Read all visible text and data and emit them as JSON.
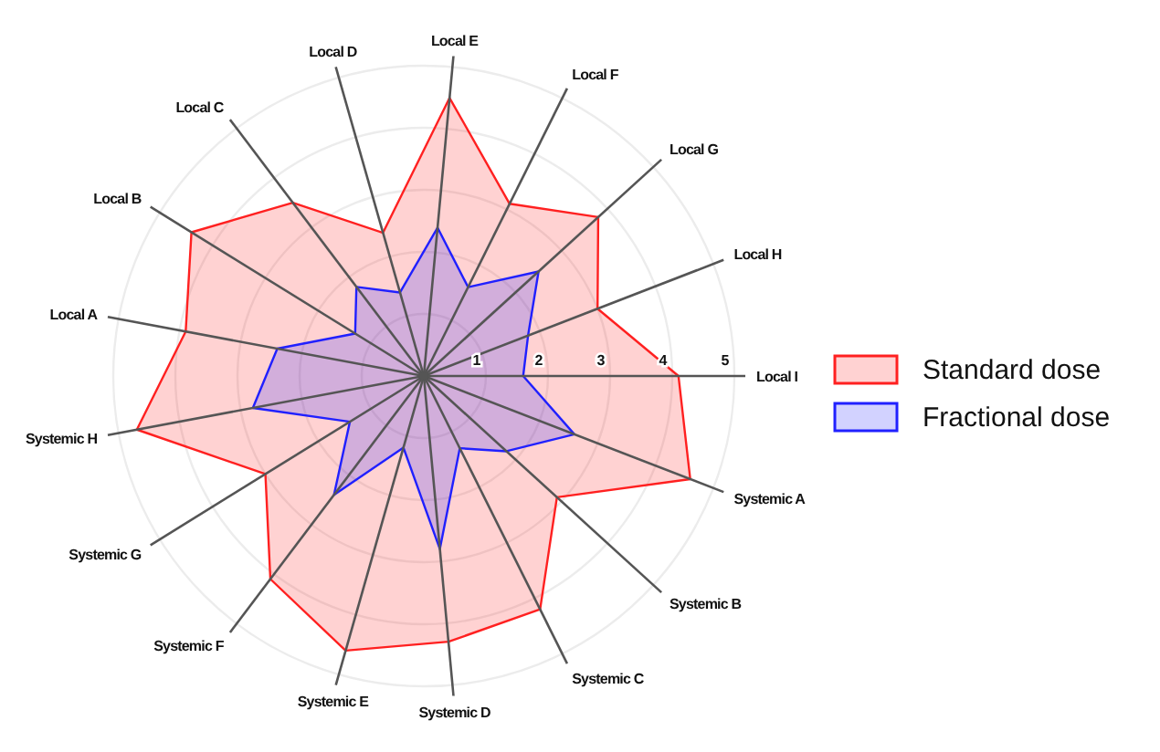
{
  "chart_data": {
    "type": "radar",
    "categories": [
      "Local E",
      "Local F",
      "Local G",
      "Local H",
      "Local I",
      "Systemic A",
      "Systemic B",
      "Systemic C",
      "Systemic D",
      "Systemic E",
      "Systemic F",
      "Systemic G",
      "Systemic H",
      "Local A",
      "Local B",
      "Local C",
      "Local D"
    ],
    "series": [
      {
        "name": "Standard dose",
        "color": "#ff2020",
        "values": [
          4.5,
          3.1,
          3.8,
          3.0,
          4.1,
          4.6,
          2.9,
          4.2,
          4.3,
          4.6,
          4.1,
          3.0,
          4.7,
          3.9,
          4.4,
          3.5,
          2.4
        ]
      },
      {
        "name": "Fractional dose",
        "color": "#2020ff",
        "values": [
          2.4,
          1.6,
          2.5,
          1.8,
          1.6,
          2.6,
          1.8,
          1.3,
          2.8,
          1.2,
          2.4,
          1.4,
          2.8,
          2.4,
          1.3,
          1.8,
          1.4
        ]
      }
    ],
    "ylim": [
      0,
      5
    ],
    "yticks": [
      1,
      2,
      3,
      4,
      5
    ],
    "grid": true,
    "legend": "right"
  }
}
